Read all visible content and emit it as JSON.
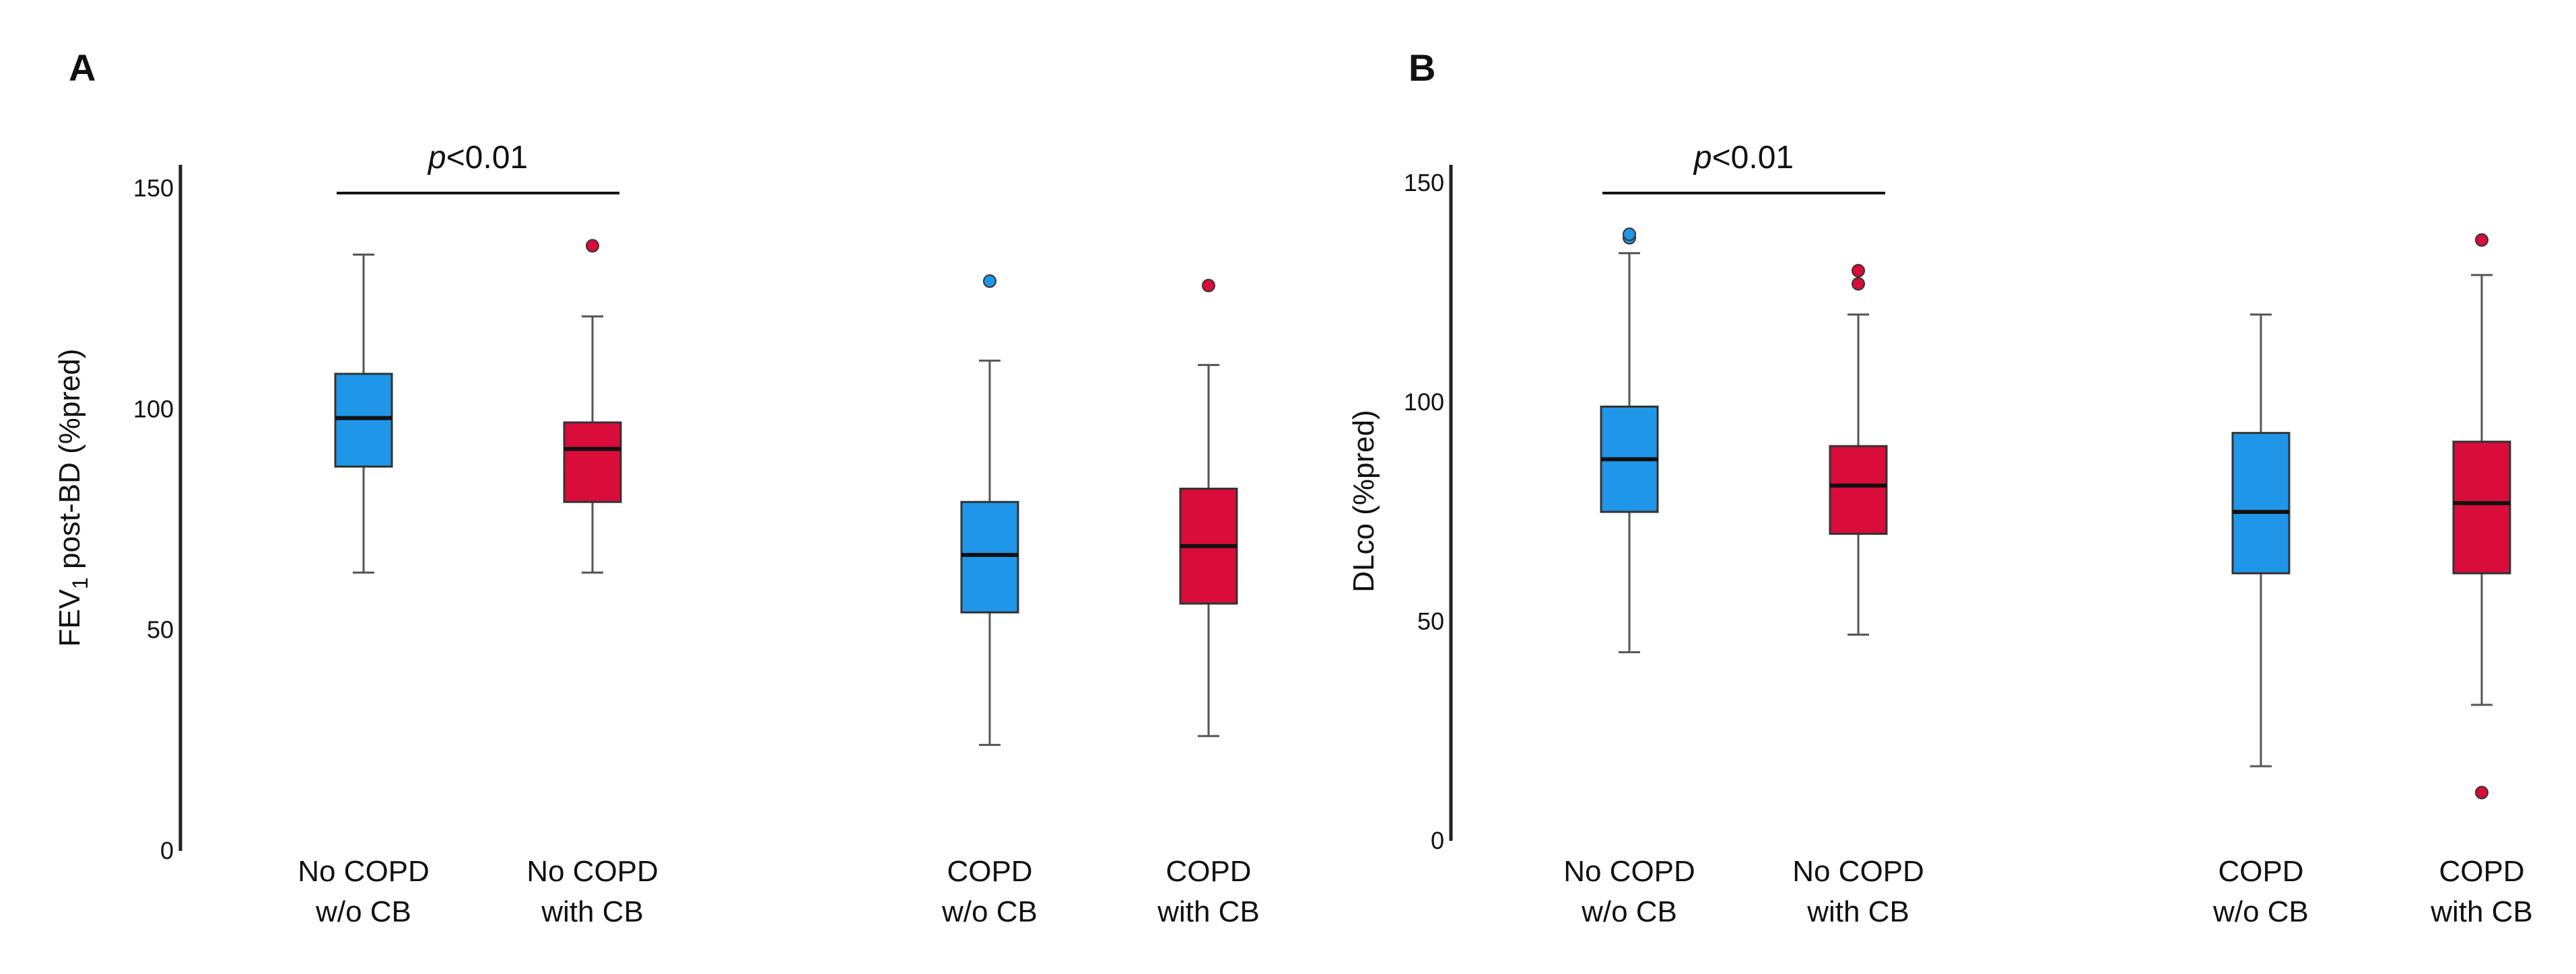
{
  "chart_data": [
    {
      "type": "boxplot",
      "panel": "A",
      "ylabel_main": "FEV",
      "ylabel_sub": "1",
      "ylabel_rest": " post-BD (%pred)",
      "ylim": [
        0,
        150
      ],
      "yticks": [
        0,
        50,
        100,
        150
      ],
      "colors": {
        "w/o CB": "#1f96e8",
        "with CB": "#d90c3a"
      },
      "groups": [
        {
          "line1": "No COPD",
          "line2": "w/o CB",
          "color": "#1f96e8",
          "min": 63,
          "q1": 87,
          "median": 98,
          "q3": 108,
          "max": 135,
          "outliers": []
        },
        {
          "line1": "No COPD",
          "line2": "with CB",
          "color": "#d90c3a",
          "min": 63,
          "q1": 79,
          "median": 91,
          "q3": 97,
          "max": 121,
          "outliers": [
            137
          ]
        },
        {
          "line1": "COPD",
          "line2": "w/o CB",
          "color": "#1f96e8",
          "min": 24,
          "q1": 54,
          "median": 67,
          "q3": 79,
          "max": 111,
          "outliers": [
            129
          ]
        },
        {
          "line1": "COPD",
          "line2": "with CB",
          "color": "#d90c3a",
          "min": 26,
          "q1": 56,
          "median": 69,
          "q3": 82,
          "max": 110,
          "outliers": [
            128
          ]
        }
      ],
      "significance": {
        "label_italic": "p",
        "label_rest": "<0.01",
        "between": [
          0,
          1
        ]
      }
    },
    {
      "type": "boxplot",
      "panel": "B",
      "ylabel_main": "DLco (%pred)",
      "ylabel_sub": "",
      "ylabel_rest": "",
      "ylim": [
        0,
        150
      ],
      "yticks": [
        0,
        50,
        100,
        150
      ],
      "colors": {
        "w/o CB": "#1f96e8",
        "with CB": "#d90c3a"
      },
      "groups": [
        {
          "line1": "No COPD",
          "line2": "w/o CB",
          "color": "#1f96e8",
          "min": 43,
          "q1": 75,
          "median": 87,
          "q3": 99,
          "max": 134,
          "outliers": [
            137.5,
            138.3
          ]
        },
        {
          "line1": "No COPD",
          "line2": "with CB",
          "color": "#d90c3a",
          "min": 47,
          "q1": 70,
          "median": 81,
          "q3": 90,
          "max": 120,
          "outliers": [
            127,
            130
          ]
        },
        {
          "line1": "COPD",
          "line2": "w/o CB",
          "color": "#1f96e8",
          "min": 17,
          "q1": 61,
          "median": 75,
          "q3": 93,
          "max": 120,
          "outliers": []
        },
        {
          "line1": "COPD",
          "line2": "with CB",
          "color": "#d90c3a",
          "min": 31,
          "q1": 61,
          "median": 77,
          "q3": 91,
          "max": 129,
          "outliers": [
            11,
            137
          ]
        }
      ],
      "significance": {
        "label_italic": "p",
        "label_rest": "<0.01",
        "between": [
          0,
          1
        ]
      }
    }
  ]
}
